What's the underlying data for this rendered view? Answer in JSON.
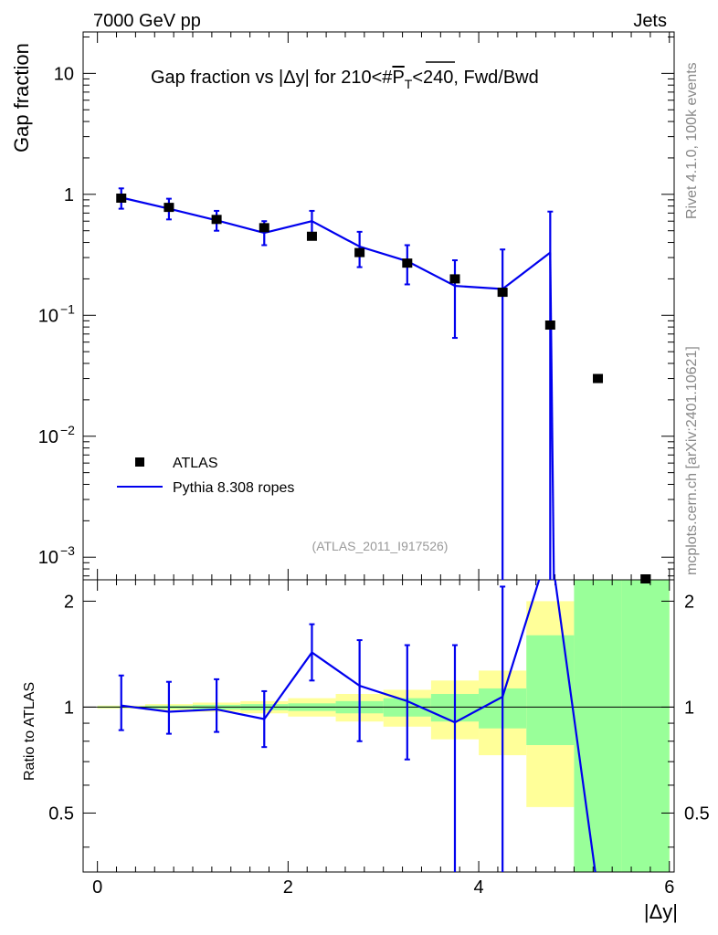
{
  "header": {
    "energy_label": "7000 GeV pp",
    "category_label": "Jets",
    "plot_title": "Gap fraction vs |Δy| for 210<#P̅T<240, Fwd/Bwd",
    "plot_title_pre": "Gap fraction vs |Δy| for 210<#",
    "plot_title_p": "P",
    "plot_title_t": "T",
    "plot_title_post": "<240, Fwd/Bwd",
    "analysis_label": "(ATLAS_2011_I917526)"
  },
  "side_labels": {
    "rivet": "Rivet 4.1.0,  100k events",
    "mcplots": "mcplots.cern.ch [arXiv:2401.10621]"
  },
  "axes": {
    "main_ylabel": "Gap fraction",
    "ratio_ylabel": "Ratio to ATLAS",
    "xlabel": "|Δy|",
    "x_ticks": [
      "0",
      "2",
      "4",
      "6"
    ],
    "main_y_ticks": [
      {
        "base": "10",
        "exp": "",
        "value": 10
      },
      {
        "base": "1",
        "exp": "",
        "value": 1
      },
      {
        "base": "10",
        "exp": "−1",
        "value": 0.1
      },
      {
        "base": "10",
        "exp": "−2",
        "value": 0.01
      },
      {
        "base": "10",
        "exp": "−3",
        "value": 0.001
      }
    ],
    "ratio_y_ticks": [
      "0.5",
      "1",
      "2"
    ]
  },
  "legend": {
    "data_label": "ATLAS",
    "mc_label": "Pythia 8.308 ropes"
  },
  "colors": {
    "data": "#000000",
    "mc": "#0000ee",
    "band_inner": "#99ff99",
    "band_outer": "#ffff99",
    "ratio_line": "#000000"
  },
  "chart_data": {
    "type": "line",
    "xlim": [
      -0.15,
      6.05
    ],
    "main_ylim": [
      0.00065,
      22
    ],
    "ratio_ylim": [
      0.34,
      2.3
    ],
    "main_yscale": "log",
    "ratio_yscale": "log",
    "bins": [
      [
        0.0,
        0.5
      ],
      [
        0.5,
        1.0
      ],
      [
        1.0,
        1.5
      ],
      [
        1.5,
        2.0
      ],
      [
        2.0,
        2.5
      ],
      [
        2.5,
        3.0
      ],
      [
        3.0,
        3.5
      ],
      [
        3.5,
        4.0
      ],
      [
        4.0,
        4.5
      ],
      [
        4.5,
        5.0
      ],
      [
        5.0,
        5.5
      ],
      [
        5.5,
        6.0
      ]
    ],
    "series": [
      {
        "name": "ATLAS",
        "x": [
          0.25,
          0.75,
          1.25,
          1.75,
          2.25,
          2.75,
          3.25,
          3.75,
          4.25,
          4.75,
          5.25,
          5.75
        ],
        "values": [
          0.93,
          0.78,
          0.62,
          0.53,
          0.45,
          0.33,
          0.27,
          0.2,
          0.155,
          0.083,
          0.03,
          0.00062
        ]
      },
      {
        "name": "Pythia 8.308 ropes",
        "x": [
          0.25,
          0.75,
          1.25,
          1.75,
          2.25,
          2.75,
          3.25,
          3.75,
          4.25,
          4.75
        ],
        "values": [
          0.94,
          0.76,
          0.61,
          0.48,
          0.6,
          0.37,
          0.28,
          0.175,
          0.165,
          0.33
        ],
        "err_up": [
          1.12,
          0.92,
          0.73,
          0.6,
          0.73,
          0.49,
          0.38,
          0.285,
          0.35,
          0.72
        ],
        "err_down": [
          0.76,
          0.62,
          0.5,
          0.38,
          0.47,
          0.25,
          0.18,
          0.065,
          0.0001,
          0.0001
        ]
      }
    ],
    "ratio": {
      "x": [
        0.25,
        0.75,
        1.25,
        1.75,
        2.25,
        2.75,
        3.25,
        3.75,
        4.25,
        4.75,
        5.25
      ],
      "values": [
        1.01,
        0.97,
        0.985,
        0.925,
        1.43,
        1.15,
        1.04,
        0.905,
        1.07,
        2.9,
        0.3
      ],
      "err_up": [
        1.23,
        1.18,
        1.2,
        1.11,
        1.72,
        1.55,
        1.5,
        1.5,
        2.2,
        null,
        null
      ],
      "err_down": [
        0.86,
        0.84,
        0.85,
        0.77,
        1.19,
        0.8,
        0.71,
        0.3,
        0.3,
        null,
        null
      ],
      "band_inner": [
        [
          0.995,
          1.005
        ],
        [
          0.99,
          1.01
        ],
        [
          0.985,
          1.015
        ],
        [
          0.98,
          1.02
        ],
        [
          0.975,
          1.025
        ],
        [
          0.96,
          1.04
        ],
        [
          0.94,
          1.06
        ],
        [
          0.91,
          1.09
        ],
        [
          0.87,
          1.13
        ],
        [
          0.78,
          1.6
        ],
        [
          0.3,
          2.3
        ],
        [
          0.3,
          2.3
        ]
      ],
      "band_outer": [
        [
          0.99,
          1.01
        ],
        [
          0.98,
          1.02
        ],
        [
          0.97,
          1.03
        ],
        [
          0.96,
          1.04
        ],
        [
          0.94,
          1.06
        ],
        [
          0.91,
          1.09
        ],
        [
          0.88,
          1.12
        ],
        [
          0.81,
          1.19
        ],
        [
          0.73,
          1.27
        ],
        [
          0.52,
          2.0
        ],
        [
          0.3,
          2.3
        ],
        [
          0.3,
          2.3
        ]
      ]
    }
  }
}
